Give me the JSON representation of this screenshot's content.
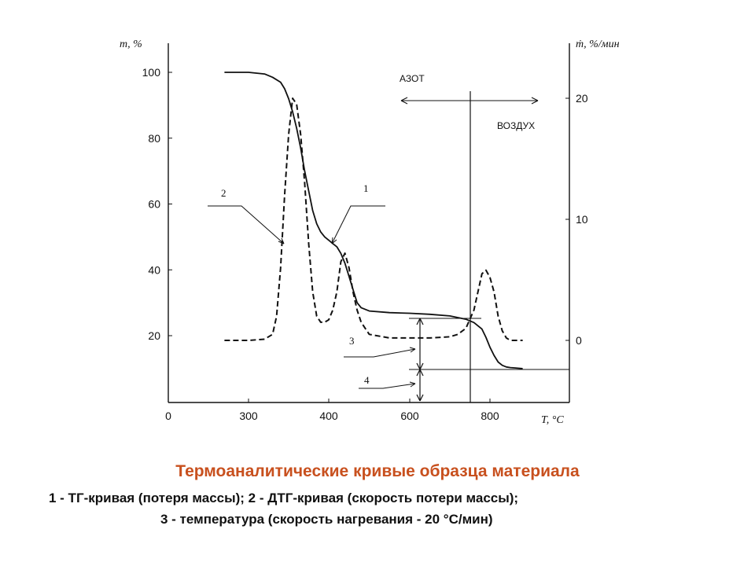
{
  "chart_data": {
    "type": "line",
    "title": "Термоаналитические кривые образца материала",
    "xlabel": "T, °C",
    "ylabel_left": "m, %",
    "ylabel_right": "ṁ, %/мин",
    "x_ticks": [
      0,
      300,
      400,
      600,
      800
    ],
    "y_left_ticks": [
      20,
      40,
      60,
      80,
      100
    ],
    "y_right_ticks": [
      0,
      10,
      20
    ],
    "y_left_range": [
      4,
      108
    ],
    "y_right_range": [
      -5,
      23
    ],
    "grid": false,
    "annotations": {
      "nitrogen": "АЗОТ",
      "air": "ВОЗДУХ",
      "label_1": "1",
      "label_2": "2",
      "label_3": "3",
      "label_4": "4"
    },
    "series": [
      {
        "name": "1",
        "axis": "left",
        "style": "solid",
        "x": [
          210,
          250,
          300,
          320,
          330,
          340,
          345,
          350,
          355,
          360,
          365,
          370,
          375,
          380,
          385,
          390,
          395,
          400,
          410,
          420,
          430,
          440,
          450,
          460,
          470,
          480,
          500,
          550,
          600,
          650,
          700,
          720,
          740,
          760,
          780,
          790,
          800,
          810,
          820,
          830,
          840,
          850,
          860,
          880
        ],
        "values": [
          100,
          100,
          100,
          99.5,
          98.5,
          97,
          95,
          92,
          88,
          83,
          77,
          70,
          64,
          58,
          54,
          51.5,
          50,
          49,
          48,
          47,
          45,
          42,
          38,
          34,
          30,
          28.5,
          27.5,
          27,
          26.8,
          26.5,
          26,
          25.5,
          25,
          24,
          22,
          19.5,
          16.5,
          14,
          12,
          11,
          10.5,
          10.3,
          10.2,
          10
        ]
      },
      {
        "name": "2",
        "axis": "right",
        "style": "dashed",
        "x": [
          210,
          250,
          300,
          320,
          330,
          335,
          340,
          345,
          350,
          355,
          360,
          365,
          370,
          375,
          380,
          385,
          390,
          395,
          400,
          410,
          420,
          430,
          440,
          450,
          460,
          470,
          480,
          500,
          550,
          600,
          650,
          700,
          720,
          740,
          760,
          770,
          780,
          790,
          800,
          810,
          820,
          830,
          840,
          850,
          880
        ],
        "values": [
          0,
          0,
          0,
          0.1,
          0.5,
          2,
          6,
          12,
          17,
          20,
          19.5,
          17,
          13,
          8,
          4,
          2,
          1.5,
          1.5,
          1.7,
          2.5,
          4,
          6.5,
          7.2,
          6,
          4,
          2.5,
          1.5,
          0.5,
          0.2,
          0.2,
          0.2,
          0.3,
          0.5,
          1,
          2.5,
          4,
          5.5,
          5.8,
          5.2,
          4,
          2,
          0.8,
          0.2,
          0,
          0
        ]
      }
    ]
  },
  "caption": {
    "title": "Термоаналитические кривые образца материала",
    "line1": "1 - ТГ-кривая (потеря массы); 2 - ДТГ-кривая (скорость потери массы);",
    "line2": "3 - температура (скорость нагревания - 20 °С/мин)"
  },
  "colors": {
    "caption_title": "#c8501e",
    "lines": "#111111"
  }
}
